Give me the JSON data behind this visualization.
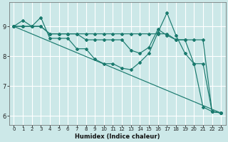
{
  "xlabel": "Humidex (Indice chaleur)",
  "background_color": "#cce8e8",
  "grid_color": "#ffffff",
  "line_color": "#1a7a6e",
  "xlim": [
    -0.5,
    23.5
  ],
  "ylim": [
    5.7,
    9.8
  ],
  "yticks": [
    6,
    7,
    8,
    9
  ],
  "xticks": [
    0,
    1,
    2,
    3,
    4,
    5,
    6,
    7,
    8,
    9,
    10,
    11,
    12,
    13,
    14,
    15,
    16,
    17,
    18,
    19,
    20,
    21,
    22,
    23
  ],
  "series": [
    {
      "x": [
        0,
        1,
        2,
        3,
        4,
        5,
        6,
        7,
        8,
        9,
        10,
        11,
        12,
        13,
        14,
        15,
        16,
        17,
        18,
        19,
        20,
        21,
        22,
        23
      ],
      "y": [
        9.0,
        9.2,
        9.0,
        9.3,
        8.6,
        8.6,
        8.6,
        8.25,
        8.25,
        7.9,
        7.75,
        7.75,
        7.6,
        7.55,
        7.8,
        8.1,
        8.8,
        9.45,
        8.7,
        8.1,
        7.75,
        6.3,
        6.15,
        6.1
      ]
    },
    {
      "x": [
        0,
        1,
        2,
        3,
        4,
        5,
        6,
        7,
        8,
        9,
        10,
        11,
        12,
        13,
        14,
        15,
        16,
        17,
        18,
        19,
        20,
        21,
        22,
        23
      ],
      "y": [
        9.0,
        9.0,
        9.0,
        9.0,
        8.75,
        8.75,
        8.75,
        8.75,
        8.75,
        8.75,
        8.75,
        8.75,
        8.75,
        8.75,
        8.75,
        8.75,
        8.75,
        8.75,
        8.55,
        8.55,
        8.55,
        8.55,
        6.15,
        6.1
      ]
    },
    {
      "x": [
        0,
        23
      ],
      "y": [
        9.0,
        6.1
      ]
    },
    {
      "x": [
        0,
        1,
        2,
        3,
        4,
        5,
        6,
        7,
        8,
        9,
        10,
        11,
        12,
        13,
        14,
        15,
        16,
        17,
        18,
        19,
        20,
        21,
        22,
        23
      ],
      "y": [
        9.0,
        9.0,
        9.0,
        9.0,
        8.75,
        8.75,
        8.75,
        8.75,
        8.55,
        8.55,
        8.55,
        8.55,
        8.55,
        8.2,
        8.1,
        8.3,
        8.9,
        8.7,
        8.55,
        8.55,
        7.75,
        7.75,
        6.15,
        6.1
      ]
    }
  ]
}
